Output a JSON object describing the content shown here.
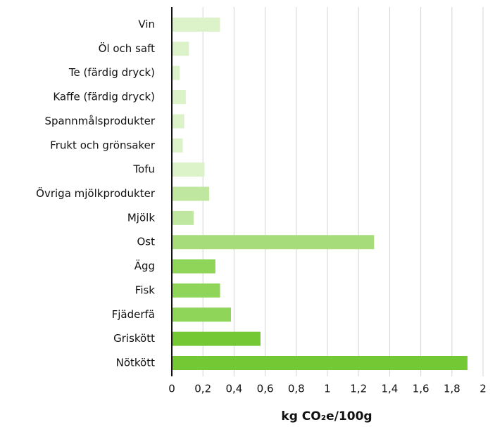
{
  "chart_data": {
    "type": "barh",
    "categories": [
      "Vin",
      "Öl och saft",
      "Te (färdig dryck)",
      "Kaffe (färdig dryck)",
      "Spannmålsprodukter",
      "Frukt och grönsaker",
      "Tofu",
      "Övriga mjölkprodukter",
      "Mjölk",
      "Ost",
      "Ägg",
      "Fisk",
      "Fjäderfä",
      "Griskött",
      "Nötkött"
    ],
    "values": [
      0.31,
      0.11,
      0.05,
      0.09,
      0.08,
      0.07,
      0.21,
      0.24,
      0.14,
      1.3,
      0.28,
      0.31,
      0.38,
      0.57,
      1.9
    ],
    "colors": [
      "#dcf2c8",
      "#dcf2c8",
      "#dcf2c8",
      "#dcf2c8",
      "#dcf2c8",
      "#dcf2c8",
      "#dcf2c8",
      "#bfe7a0",
      "#bfe7a0",
      "#a6dd7a",
      "#8ed55a",
      "#8ed55a",
      "#8ed55a",
      "#74c833",
      "#74c833"
    ],
    "xlabel": "kg CO₂e/100g",
    "xlim": [
      0,
      2
    ],
    "xticks": [
      0,
      {
        "value": 0.2,
        "label": "0,2"
      },
      {
        "value": 0.4,
        "label": "0,4"
      },
      {
        "value": 0.6,
        "label": "0,6"
      },
      {
        "value": 0.8,
        "label": "0,8"
      },
      1,
      {
        "value": 1.2,
        "label": "1,2"
      },
      {
        "value": 1.4,
        "label": "1,4"
      },
      {
        "value": 1.6,
        "label": "1,6"
      },
      {
        "value": 1.8,
        "label": "1,8"
      },
      2
    ],
    "grid": true
  }
}
